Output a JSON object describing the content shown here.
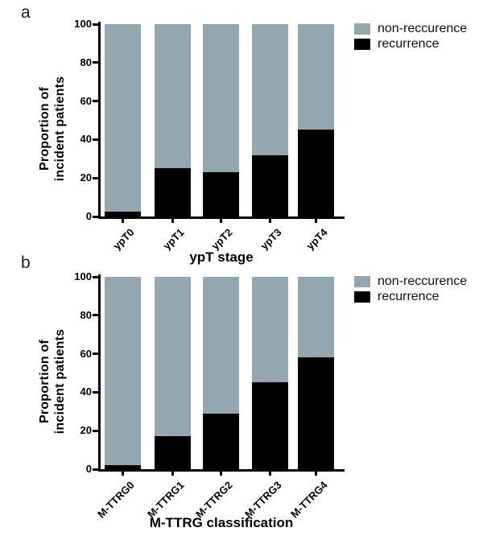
{
  "legend": {
    "items": [
      {
        "label": "non-reccurence",
        "color": "#93a7b0"
      },
      {
        "label": "recurrence",
        "color": "#000000"
      }
    ]
  },
  "chart_data": [
    {
      "type": "bar",
      "stacked": true,
      "panel_letter": "a",
      "categories": [
        "ypT0",
        "ypT1",
        "ypT2",
        "ypT3",
        "ypT4"
      ],
      "series": [
        {
          "name": "recurrence",
          "color": "#000000",
          "values": [
            2.5,
            25,
            23,
            32,
            45
          ]
        },
        {
          "name": "non-reccurence",
          "color": "#93a7b0",
          "values": [
            97.5,
            75,
            77,
            68,
            55
          ]
        }
      ],
      "xlabel": "ypT stage",
      "ylabel_lines": [
        "Proportion of",
        "incident patients"
      ],
      "ylim": [
        0,
        100
      ],
      "yticks": [
        0,
        20,
        40,
        60,
        80,
        100
      ],
      "grid": false,
      "legend_position": "top-right"
    },
    {
      "type": "bar",
      "stacked": true,
      "panel_letter": "b",
      "categories": [
        "M-TTRG0",
        "M-TTRG1",
        "M-TTRG2",
        "M-TTRG3",
        "M-TTRG4"
      ],
      "series": [
        {
          "name": "recurrence",
          "color": "#000000",
          "values": [
            2,
            17,
            29,
            45,
            58
          ]
        },
        {
          "name": "non-reccurence",
          "color": "#93a7b0",
          "values": [
            98,
            83,
            71,
            55,
            42
          ]
        }
      ],
      "xlabel": "M-TTRG classification",
      "ylabel_lines": [
        "Proportion of",
        "incident patients"
      ],
      "ylim": [
        0,
        100
      ],
      "yticks": [
        0,
        20,
        40,
        60,
        80,
        100
      ],
      "grid": false,
      "legend_position": "top-right"
    }
  ]
}
